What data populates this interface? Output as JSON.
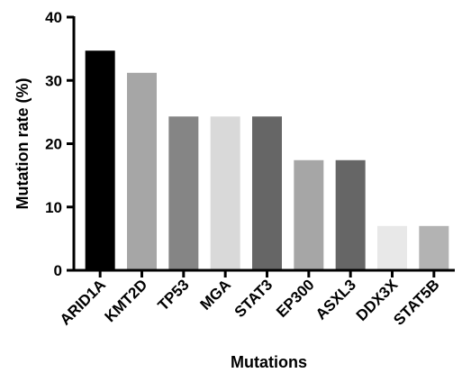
{
  "chart_data": {
    "type": "bar",
    "title": "",
    "xlabel": "Mutations",
    "ylabel": "Mutation rate (%)",
    "ylim": [
      0,
      40
    ],
    "yticks": [
      0,
      10,
      20,
      30,
      40
    ],
    "grid": false,
    "legend": "none",
    "categories": [
      "ARID1A",
      "KMT2D",
      "TP53",
      "MGA",
      "STAT3",
      "EP300",
      "ASXL3",
      "DDX3X",
      "STAT5B"
    ],
    "values": [
      34.7,
      31.2,
      24.3,
      24.3,
      24.3,
      17.4,
      17.4,
      7.0,
      7.0
    ],
    "colors": [
      "#000000",
      "#a6a6a6",
      "#858585",
      "#d9d9d9",
      "#666666",
      "#a6a6a6",
      "#666666",
      "#e8e8e8",
      "#b3b3b3"
    ]
  }
}
